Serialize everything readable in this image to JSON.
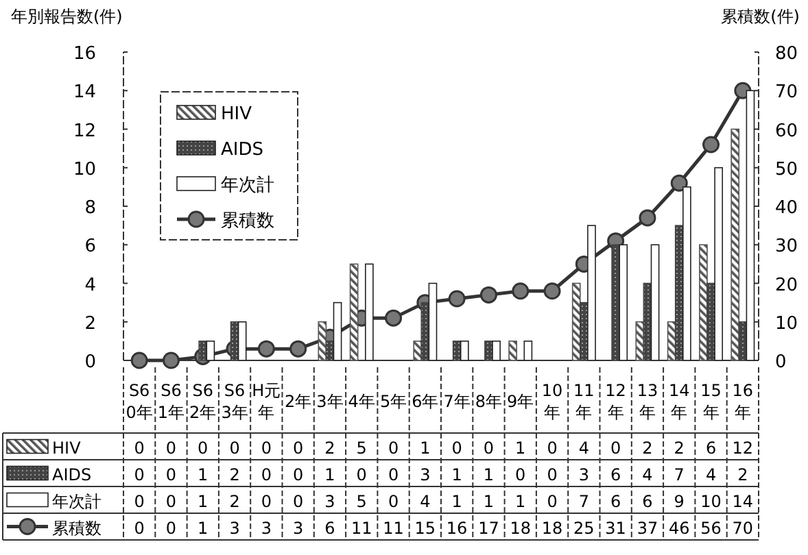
{
  "chart_data": {
    "type": "bar",
    "ylabel": "年別報告数(件)",
    "y2label": "累積数(件)",
    "categories": [
      "S60年",
      "S61年",
      "S62年",
      "S63年",
      "H元年",
      "2年",
      "3年",
      "4年",
      "5年",
      "6年",
      "7年",
      "8年",
      "9年",
      "10年",
      "11年",
      "12年",
      "13年",
      "14年",
      "15年",
      "16年"
    ],
    "series": [
      {
        "name": "HIV",
        "color": "#555555",
        "values": [
          0,
          0,
          0,
          0,
          0,
          0,
          2,
          5,
          0,
          1,
          0,
          0,
          1,
          0,
          4,
          0,
          2,
          2,
          6,
          12
        ]
      },
      {
        "name": "AIDS",
        "color": "#444444",
        "values": [
          0,
          0,
          1,
          2,
          0,
          0,
          1,
          0,
          0,
          3,
          1,
          1,
          0,
          0,
          3,
          6,
          4,
          7,
          4,
          2
        ]
      },
      {
        "name": "年次計",
        "color": "#ffffff",
        "values": [
          0,
          0,
          1,
          2,
          0,
          0,
          3,
          5,
          0,
          4,
          1,
          1,
          1,
          0,
          7,
          6,
          6,
          9,
          10,
          14
        ]
      },
      {
        "name": "累積数",
        "type": "line",
        "axis": "y2",
        "color": "#333333",
        "marker": "circle",
        "values": [
          0,
          0,
          1,
          3,
          3,
          3,
          6,
          11,
          11,
          15,
          16,
          17,
          18,
          18,
          25,
          31,
          37,
          46,
          56,
          70
        ]
      }
    ],
    "ylim": [
      0,
      16
    ],
    "yticks": [
      0,
      2,
      4,
      6,
      8,
      10,
      12,
      14,
      16
    ],
    "y2lim": [
      0,
      80
    ],
    "y2ticks": [
      0,
      10,
      20,
      30,
      40,
      50,
      60,
      70,
      80
    ],
    "grid": false,
    "legend": "top left",
    "data_labels": true
  }
}
